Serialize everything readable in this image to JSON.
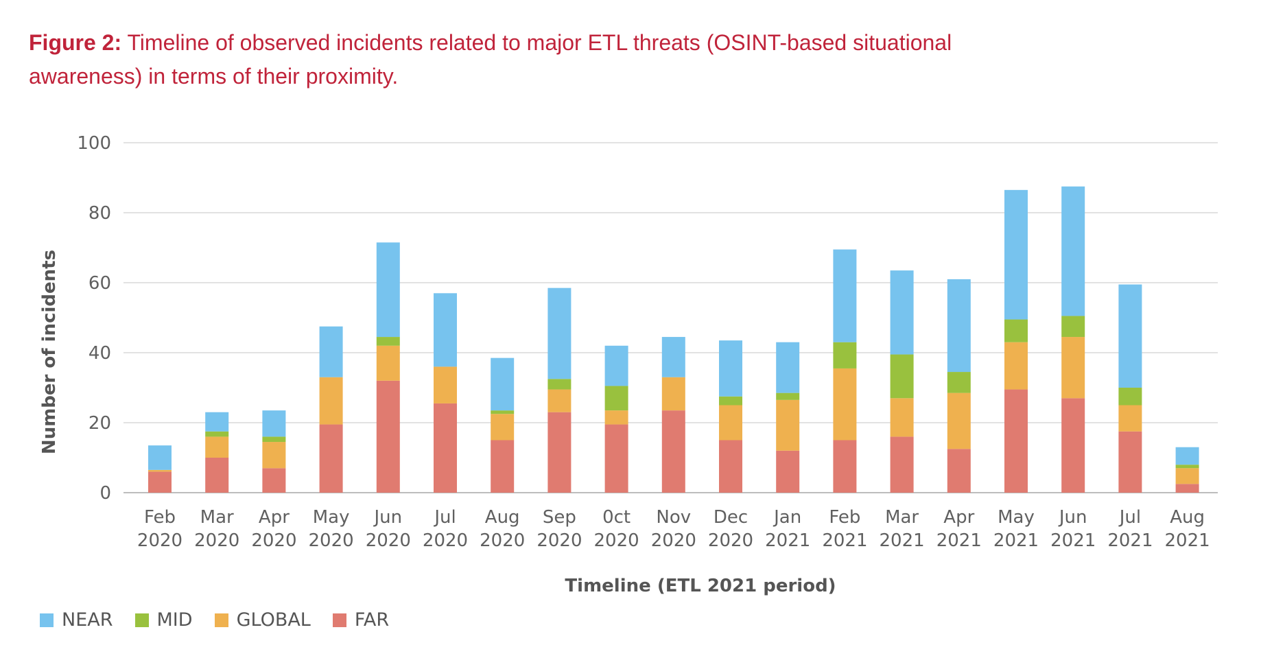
{
  "figure": {
    "label": "Figure 2:",
    "caption": "Timeline of observed incidents related to major ETL threats (OSINT-based situational awareness) in terms of their proximity."
  },
  "chart_data": {
    "type": "bar",
    "stacked": true,
    "title": "",
    "xlabel": "Timeline (ETL 2021 period)",
    "ylabel": "Number of incidents",
    "ylim": [
      0,
      100
    ],
    "yticks": [
      "0",
      "20",
      "40",
      "60",
      "80",
      "100"
    ],
    "grid": true,
    "legend_position": "bottom-left",
    "categories": [
      [
        "Feb",
        "2020"
      ],
      [
        "Mar",
        "2020"
      ],
      [
        "Apr",
        "2020"
      ],
      [
        "May",
        "2020"
      ],
      [
        "Jun",
        "2020"
      ],
      [
        "Jul",
        "2020"
      ],
      [
        "Aug",
        "2020"
      ],
      [
        "Sep",
        "2020"
      ],
      [
        "0ct",
        "2020"
      ],
      [
        "Nov",
        "2020"
      ],
      [
        "Dec",
        "2020"
      ],
      [
        "Jan",
        "2021"
      ],
      [
        "Feb",
        "2021"
      ],
      [
        "Mar",
        "2021"
      ],
      [
        "Apr",
        "2021"
      ],
      [
        "May",
        "2021"
      ],
      [
        "Jun",
        "2021"
      ],
      [
        "Jul",
        "2021"
      ],
      [
        "Aug",
        "2021"
      ]
    ],
    "series": [
      {
        "name": "FAR",
        "color": "#e07b70",
        "values": [
          6,
          10,
          7,
          19.5,
          32,
          25.5,
          15,
          23,
          19.5,
          23.5,
          15,
          12,
          15,
          16,
          12.5,
          29.5,
          27,
          17.5,
          2.5
        ]
      },
      {
        "name": "GLOBAL",
        "color": "#efb14f",
        "values": [
          0.5,
          6,
          7.5,
          13.5,
          10,
          10.5,
          7.5,
          6.5,
          4,
          9.5,
          10,
          14.5,
          20.5,
          11,
          16,
          13.5,
          17.5,
          7.5,
          4.5
        ]
      },
      {
        "name": "MID",
        "color": "#99c13e",
        "values": [
          0,
          1.5,
          1.5,
          0,
          2.5,
          0,
          1,
          3,
          7,
          0,
          2.5,
          2,
          7.5,
          12.5,
          6,
          6.5,
          6,
          5,
          1
        ]
      },
      {
        "name": "NEAR",
        "color": "#77c3ee",
        "values": [
          7,
          5.5,
          7.5,
          14.5,
          27,
          21,
          15,
          26,
          11.5,
          11.5,
          16,
          14.5,
          26.5,
          24,
          26.5,
          37,
          37,
          29.5,
          5
        ]
      }
    ],
    "legend": [
      {
        "name": "NEAR",
        "color": "#77c3ee"
      },
      {
        "name": "MID",
        "color": "#99c13e"
      },
      {
        "name": "GLOBAL",
        "color": "#efb14f"
      },
      {
        "name": "FAR",
        "color": "#e07b70"
      }
    ]
  }
}
